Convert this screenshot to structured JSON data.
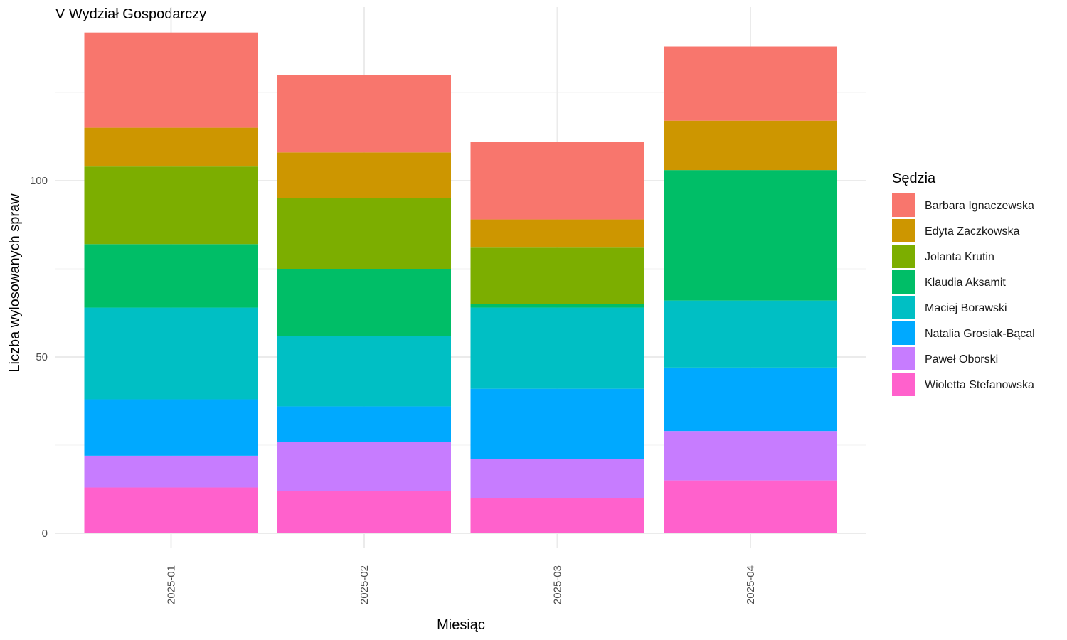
{
  "chart_data": {
    "type": "bar",
    "stacked": true,
    "title": "V Wydział Gospodarczy",
    "xlabel": "Miesiąc",
    "ylabel": "Liczba wylosowanych spraw",
    "categories": [
      "2025-01",
      "2025-02",
      "2025-03",
      "2025-04"
    ],
    "ylim": [
      0,
      142
    ],
    "yticks": [
      0,
      50,
      100
    ],
    "grid": true,
    "legend_title": "Sędzia",
    "legend_position": "right",
    "series": [
      {
        "name": "Barbara Ignaczewska",
        "color": "#F8766D",
        "values": [
          27,
          22,
          22,
          21
        ]
      },
      {
        "name": "Edyta Zaczkowska",
        "color": "#CD9600",
        "values": [
          11,
          13,
          8,
          14
        ]
      },
      {
        "name": "Jolanta Krutin",
        "color": "#7CAE00",
        "values": [
          22,
          20,
          16,
          0
        ]
      },
      {
        "name": "Klaudia Aksamit",
        "color": "#00BE67",
        "values": [
          18,
          19,
          1,
          37
        ]
      },
      {
        "name": "Maciej Borawski",
        "color": "#00BFC4",
        "values": [
          26,
          20,
          23,
          19
        ]
      },
      {
        "name": "Natalia Grosiak-Bącal",
        "color": "#00A9FF",
        "values": [
          16,
          10,
          20,
          18
        ]
      },
      {
        "name": "Paweł Oborski",
        "color": "#C77CFF",
        "values": [
          9,
          14,
          11,
          14
        ]
      },
      {
        "name": "Wioletta Stefanowska",
        "color": "#FF61CC",
        "values": [
          13,
          12,
          10,
          15
        ]
      }
    ]
  }
}
